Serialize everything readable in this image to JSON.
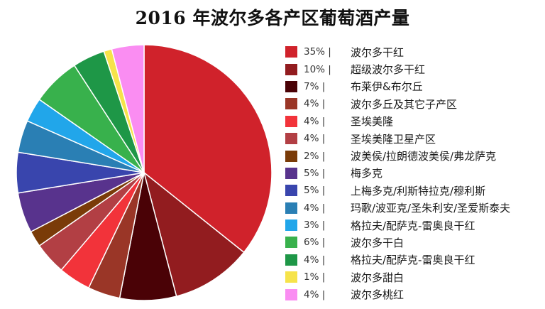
{
  "chart_data": {
    "type": "pie",
    "title": "2016 年波尔多各产区葡萄酒产量",
    "legend_position": "right",
    "slices": [
      {
        "pct_label": "35% |",
        "label": "波尔多干红",
        "value": 35,
        "color": "#d0222b"
      },
      {
        "pct_label": "10% |",
        "label": "超级波尔多干红",
        "value": 10,
        "color": "#921c1f"
      },
      {
        "pct_label": "7% |",
        "label": "布莱伊&布尔丘",
        "value": 7,
        "color": "#4a0206"
      },
      {
        "pct_label": "4% |",
        "label": "波尔多丘及其它子产区",
        "value": 4,
        "color": "#9a3627"
      },
      {
        "pct_label": "4% |",
        "label": "圣埃美隆",
        "value": 4,
        "color": "#f2333a"
      },
      {
        "pct_label": "4% |",
        "label": "圣埃美隆卫星产区",
        "value": 4,
        "color": "#b23f44"
      },
      {
        "pct_label": "2% |",
        "label": "波美侯/拉朗德波美侯/弗龙萨克",
        "value": 2,
        "color": "#7a3b08"
      },
      {
        "pct_label": "5% |",
        "label": "梅多克",
        "value": 5,
        "color": "#58338d"
      },
      {
        "pct_label": "5% |",
        "label": "上梅多克/利斯特拉克/穆利斯",
        "value": 5,
        "color": "#3945ad"
      },
      {
        "pct_label": "4% |",
        "label": "玛歌/波亚克/圣朱利安/圣爱斯泰夫",
        "value": 4,
        "color": "#2a7fb4"
      },
      {
        "pct_label": "3% |",
        "label": "格拉夫/配萨克-雷奥良干红",
        "value": 3,
        "color": "#21a6ea"
      },
      {
        "pct_label": "6% |",
        "label": "波尔多干白",
        "value": 6,
        "color": "#38b14c"
      },
      {
        "pct_label": "4% |",
        "label": "格拉夫/配萨克-雷奥良干红",
        "value": 4,
        "color": "#1e9747"
      },
      {
        "pct_label": "1% |",
        "label": "波尔多甜白",
        "value": 1,
        "color": "#f6e34a"
      },
      {
        "pct_label": "4% |",
        "label": "波尔多桃红",
        "value": 4,
        "color": "#fa8df2"
      }
    ]
  }
}
